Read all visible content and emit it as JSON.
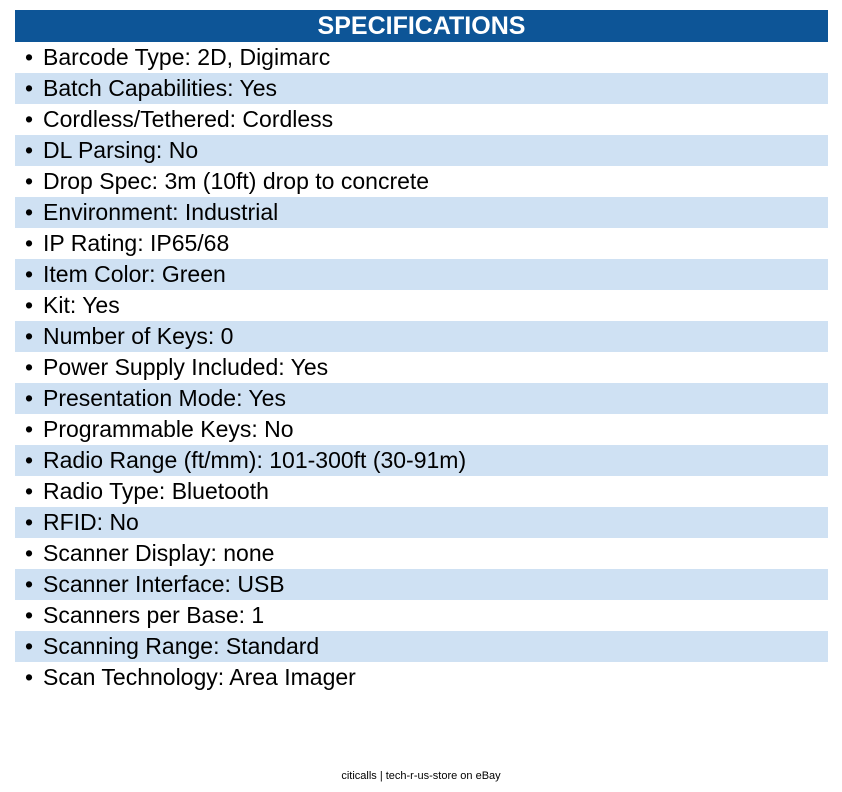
{
  "header": {
    "title": "SPECIFICATIONS"
  },
  "specs": [
    "Barcode Type: 2D, Digimarc",
    "Batch Capabilities: Yes",
    "Cordless/Tethered: Cordless",
    "DL Parsing: No",
    "Drop Spec: 3m (10ft) drop to concrete",
    "Environment: Industrial",
    "IP Rating: IP65/68",
    "Item Color: Green",
    "Kit: Yes",
    "Number of Keys: 0",
    "Power Supply Included: Yes",
    "Presentation Mode: Yes",
    "Programmable Keys: No",
    "Radio Range (ft/mm): 101-300ft (30-91m)",
    "Radio Type: Bluetooth",
    "RFID: No",
    "Scanner Display: none",
    "Scanner Interface: USB",
    "Scanners per Base: 1",
    "Scanning Range: Standard",
    "Scan Technology: Area Imager"
  ],
  "footer": {
    "text": "citicalls | tech-r-us-store on eBay"
  },
  "colors": {
    "header_bg": "#0d5597",
    "stripe_bg": "#cfe1f3"
  }
}
